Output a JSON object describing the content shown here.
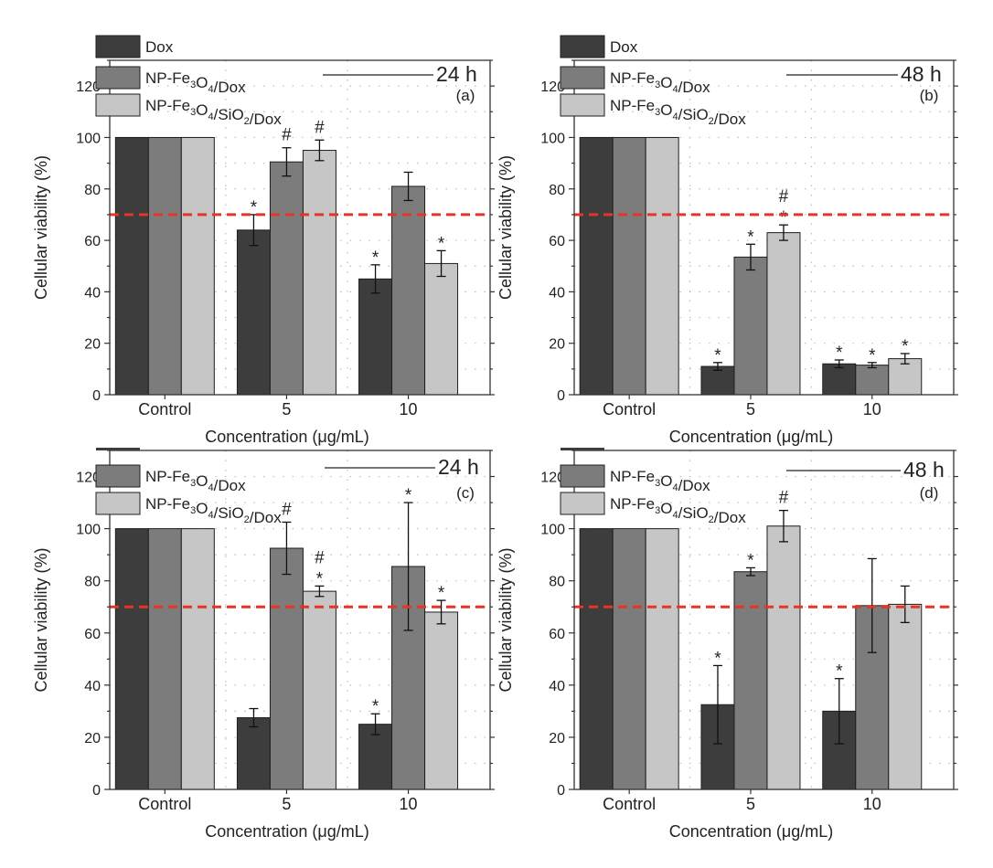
{
  "colors": {
    "dox": "#3d3d3d",
    "np_fe3o4_dox": "#7c7c7c",
    "np_fe3o4_sio2_dox": "#c6c6c6",
    "threshold": "#e8322a",
    "grid": "#bdbdbd",
    "axis": "#333333"
  },
  "chart_data": [
    {
      "panel": "(a)",
      "time": "24 h",
      "type": "bar",
      "xlabel": "Concentration (μg/mL)",
      "ylabel": "Cellular viability (%)",
      "ylim": [
        0,
        130
      ],
      "yticks": [
        0,
        20,
        40,
        60,
        80,
        100,
        120
      ],
      "threshold": 70,
      "categories": [
        "Control",
        "5",
        "10"
      ],
      "legend": [
        {
          "label": "Dox",
          "color_key": "dox"
        },
        {
          "label": "NP-Fe3O4/Dox",
          "color_key": "np_fe3o4_dox"
        },
        {
          "label": "NP-Fe3O4/SiO2/Dox",
          "color_key": "np_fe3o4_sio2_dox"
        }
      ],
      "series": [
        {
          "name": "Dox",
          "color_key": "dox",
          "values": [
            100,
            64,
            45
          ],
          "errors": [
            0,
            6,
            5.5
          ],
          "marks": [
            "",
            "*",
            "*"
          ]
        },
        {
          "name": "NP-Fe3O4/Dox",
          "color_key": "np_fe3o4_dox",
          "values": [
            100,
            90.5,
            81
          ],
          "errors": [
            0,
            5.5,
            5.5
          ],
          "marks": [
            "",
            "#",
            ""
          ]
        },
        {
          "name": "NP-Fe3O4/SiO2/Dox",
          "color_key": "np_fe3o4_sio2_dox",
          "values": [
            100,
            95,
            51
          ],
          "errors": [
            0,
            4,
            5
          ],
          "marks": [
            "",
            "#",
            "*"
          ]
        }
      ]
    },
    {
      "panel": "(b)",
      "time": "48 h",
      "type": "bar",
      "xlabel": "Concentration (μg/mL)",
      "ylabel": "Cellular viability (%)",
      "ylim": [
        0,
        130
      ],
      "yticks": [
        0,
        20,
        40,
        60,
        80,
        100,
        120
      ],
      "threshold": 70,
      "categories": [
        "Control",
        "5",
        "10"
      ],
      "legend": [
        {
          "label": "Dox",
          "color_key": "dox"
        },
        {
          "label": "NP-Fe3O4/Dox",
          "color_key": "np_fe3o4_dox"
        },
        {
          "label": "NP-Fe3O4/SiO2/Dox",
          "color_key": "np_fe3o4_sio2_dox"
        }
      ],
      "series": [
        {
          "name": "Dox",
          "color_key": "dox",
          "values": [
            100,
            11,
            12
          ],
          "errors": [
            0,
            1.5,
            1.5
          ],
          "marks": [
            "",
            "*",
            "*"
          ]
        },
        {
          "name": "NP-Fe3O4/Dox",
          "color_key": "np_fe3o4_dox",
          "values": [
            100,
            53.5,
            11.5
          ],
          "errors": [
            0,
            5,
            1
          ],
          "marks": [
            "",
            "*",
            "*"
          ]
        },
        {
          "name": "NP-Fe3O4/SiO2/Dox",
          "color_key": "np_fe3o4_sio2_dox",
          "values": [
            100,
            63,
            14
          ],
          "errors": [
            0,
            3,
            2
          ],
          "marks": [
            "",
            "#*",
            "*"
          ]
        }
      ]
    },
    {
      "panel": "(c)",
      "time": "24 h",
      "type": "bar",
      "xlabel": "Concentration (μg/mL)",
      "ylabel": "Cellular viability (%)",
      "ylim": [
        0,
        130
      ],
      "yticks": [
        0,
        20,
        40,
        60,
        80,
        100,
        120
      ],
      "threshold": 70,
      "categories": [
        "Control",
        "5",
        "10"
      ],
      "legend": [
        {
          "label": "",
          "color_key": "dox"
        },
        {
          "label": "NP-Fe3O4/Dox",
          "color_key": "np_fe3o4_dox"
        },
        {
          "label": "NP-Fe3O4/SiO2/Dox",
          "color_key": "np_fe3o4_sio2_dox"
        }
      ],
      "series": [
        {
          "name": "Dox",
          "color_key": "dox",
          "values": [
            100,
            27.5,
            25
          ],
          "errors": [
            0,
            3.5,
            4
          ],
          "marks": [
            "",
            "",
            "*"
          ]
        },
        {
          "name": "NP-Fe3O4/Dox",
          "color_key": "np_fe3o4_dox",
          "values": [
            100,
            92.5,
            85.5
          ],
          "errors": [
            0,
            10,
            24.5
          ],
          "marks": [
            "",
            "#",
            "*"
          ]
        },
        {
          "name": "NP-Fe3O4/SiO2/Dox",
          "color_key": "np_fe3o4_sio2_dox",
          "values": [
            100,
            76,
            68
          ],
          "errors": [
            0,
            2,
            4.5
          ],
          "marks": [
            "",
            "#*",
            "*"
          ]
        }
      ]
    },
    {
      "panel": "(d)",
      "time": "48 h",
      "type": "bar",
      "xlabel": "Concentration (μg/mL)",
      "ylabel": "Cellular viability (%)",
      "ylim": [
        0,
        130
      ],
      "yticks": [
        0,
        20,
        40,
        60,
        80,
        100,
        120
      ],
      "threshold": 70,
      "categories": [
        "Control",
        "5",
        "10"
      ],
      "legend": [
        {
          "label": "",
          "color_key": "dox"
        },
        {
          "label": "NP-Fe3O4/Dox",
          "color_key": "np_fe3o4_dox"
        },
        {
          "label": "NP-Fe3O4/SiO2/Dox",
          "color_key": "np_fe3o4_sio2_dox"
        }
      ],
      "series": [
        {
          "name": "Dox",
          "color_key": "dox",
          "values": [
            100,
            32.5,
            30
          ],
          "errors": [
            0,
            15,
            12.5
          ],
          "marks": [
            "",
            "*",
            "*"
          ]
        },
        {
          "name": "NP-Fe3O4/Dox",
          "color_key": "np_fe3o4_dox",
          "values": [
            100,
            83.5,
            70.5
          ],
          "errors": [
            0,
            1.5,
            18
          ],
          "marks": [
            "",
            "*",
            ""
          ]
        },
        {
          "name": "NP-Fe3O4/SiO2/Dox",
          "color_key": "np_fe3o4_sio2_dox",
          "values": [
            100,
            101,
            71
          ],
          "errors": [
            0,
            6,
            7
          ],
          "marks": [
            "",
            "#",
            ""
          ]
        }
      ]
    }
  ]
}
